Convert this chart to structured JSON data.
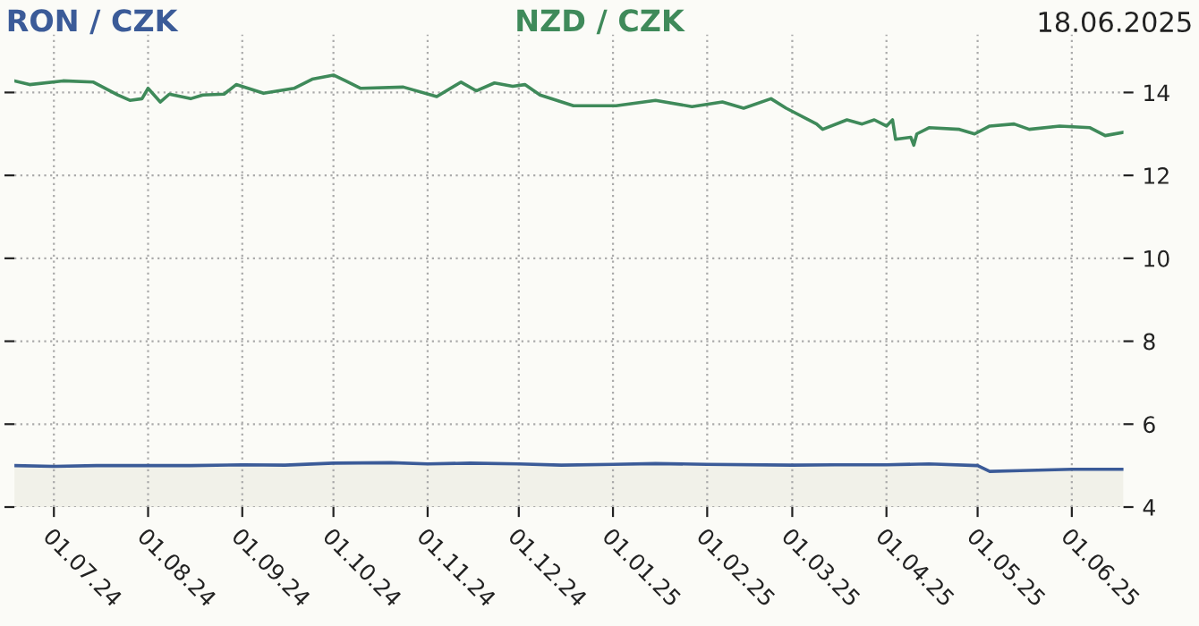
{
  "chart_data": {
    "type": "line",
    "x": [
      "2024-06-18",
      "2024-06-23",
      "2024-07-04",
      "2024-07-14",
      "2024-07-22",
      "2024-07-26",
      "2024-07-30",
      "2024-08-01",
      "2024-08-05",
      "2024-08-08",
      "2024-08-15",
      "2024-08-19",
      "2024-08-26",
      "2024-08-30",
      "2024-09-08",
      "2024-09-18",
      "2024-09-24",
      "2024-10-01",
      "2024-10-05",
      "2024-10-10",
      "2024-10-24",
      "2024-11-04",
      "2024-11-12",
      "2024-11-17",
      "2024-11-23",
      "2024-11-29",
      "2024-12-03",
      "2024-12-08",
      "2024-12-19",
      "2025-01-02",
      "2025-01-15",
      "2025-01-27",
      "2025-02-06",
      "2025-02-13",
      "2025-02-22",
      "2025-02-27",
      "2025-03-09",
      "2025-03-11",
      "2025-03-19",
      "2025-03-24",
      "2025-03-28",
      "2025-04-01",
      "2025-04-03",
      "2025-04-04",
      "2025-04-09",
      "2025-04-10",
      "2025-04-11",
      "2025-04-15",
      "2025-04-25",
      "2025-04-30",
      "2025-05-05",
      "2025-05-13",
      "2025-05-18",
      "2025-05-28",
      "2025-06-07",
      "2025-06-12",
      "2025-06-18"
    ],
    "series": [
      {
        "name": "RON / CZK",
        "color": "#3b5b98",
        "type": "area",
        "x": [
          "2024-06-18",
          "2024-07-01",
          "2024-07-15",
          "2024-08-15",
          "2024-09-01",
          "2024-09-15",
          "2024-10-01",
          "2024-10-20",
          "2024-11-01",
          "2024-11-15",
          "2024-12-01",
          "2024-12-15",
          "2025-01-01",
          "2025-01-15",
          "2025-02-01",
          "2025-03-01",
          "2025-03-15",
          "2025-04-01",
          "2025-04-15",
          "2025-05-01",
          "2025-05-05",
          "2025-05-15",
          "2025-06-01",
          "2025-06-18"
        ],
        "values": [
          5.0,
          4.98,
          5.0,
          5.0,
          5.02,
          5.01,
          5.06,
          5.07,
          5.04,
          5.06,
          5.04,
          5.01,
          5.03,
          5.05,
          5.03,
          5.01,
          5.02,
          5.02,
          5.04,
          5.0,
          4.86,
          4.88,
          4.91,
          4.91
        ]
      },
      {
        "name": "NZD / CZK",
        "color": "#3f8a5a",
        "values": [
          14.28,
          14.19,
          14.28,
          14.25,
          13.94,
          13.81,
          13.85,
          14.1,
          13.77,
          13.96,
          13.85,
          13.94,
          13.96,
          14.19,
          13.98,
          14.1,
          14.32,
          14.42,
          14.28,
          14.1,
          14.13,
          13.9,
          14.25,
          14.04,
          14.23,
          14.15,
          14.19,
          13.94,
          13.68,
          13.68,
          13.81,
          13.66,
          13.77,
          13.62,
          13.85,
          13.62,
          13.24,
          13.11,
          13.34,
          13.24,
          13.34,
          13.19,
          13.34,
          12.87,
          12.92,
          12.73,
          13.0,
          13.15,
          13.11,
          13.0,
          13.19,
          13.24,
          13.11,
          13.19,
          13.15,
          12.96,
          13.04
        ]
      }
    ],
    "xlim": [
      "2024-06-18",
      "2025-06-18"
    ],
    "xticks": [
      {
        "value": "2024-07-01",
        "label": "01.07.24"
      },
      {
        "value": "2024-08-01",
        "label": "01.08.24"
      },
      {
        "value": "2024-09-01",
        "label": "01.09.24"
      },
      {
        "value": "2024-10-01",
        "label": "01.10.24"
      },
      {
        "value": "2024-11-01",
        "label": "01.11.24"
      },
      {
        "value": "2024-12-01",
        "label": "01.12.24"
      },
      {
        "value": "2025-01-01",
        "label": "01.01.25"
      },
      {
        "value": "2025-02-01",
        "label": "01.02.25"
      },
      {
        "value": "2025-03-01",
        "label": "01.03.25"
      },
      {
        "value": "2025-04-01",
        "label": "01.04.25"
      },
      {
        "value": "2025-05-01",
        "label": "01.05.25"
      },
      {
        "value": "2025-06-01",
        "label": "01.06.25"
      }
    ],
    "ylim": [
      4,
      15.4
    ],
    "yticks": [
      4,
      6,
      8,
      10,
      12,
      14
    ],
    "grid": true,
    "legend": false,
    "annotations": [
      "18.06.2025"
    ]
  }
}
